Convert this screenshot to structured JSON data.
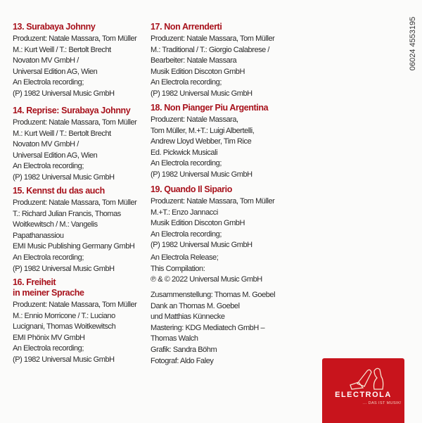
{
  "catalog_number": "06024 4553195",
  "tracks": [
    {
      "title": "13. Surabaya Johnny",
      "lines": [
        "Produzent: Natale Massara, Tom Müller",
        "M.: Kurt Weill / T.: Bertolt Brecht",
        "Novaton MV GmbH /",
        "Universal Edition AG, Wien",
        "An Electrola recording;",
        "(P) 1982 Universal Music GmbH"
      ]
    },
    {
      "title": "14. Reprise: Surabaya Johnny",
      "lines": [
        "Produzent: Natale Massara, Tom Müller",
        "M.: Kurt Weill / T.: Bertolt Brecht",
        "Novaton MV GmbH /",
        "Universal Edition AG, Wien",
        "An Electrola recording;",
        "(P) 1982 Universal Music GmbH"
      ]
    },
    {
      "title": "15. Kennst du das auch",
      "lines": [
        "Produzent: Natale Massara, Tom Müller",
        "T.: Richard Julian Francis, Thomas",
        "Woitkewitsch / M.: Vangelis",
        "Papathanassiou",
        "EMI Music Publishing Germany GmbH",
        "An Electrola recording;",
        "(P) 1982 Universal Music GmbH"
      ]
    },
    {
      "title_lines": [
        "16. Freiheit",
        "in meiner Sprache"
      ],
      "lines": [
        "Produzent: Natale Massara, Tom Müller",
        "M.: Ennio Morricone / T.: Luciano",
        "Lucignani, Thomas Woitkewitsch",
        "EMI Phönix MV GmbH",
        "An Electrola recording;",
        "(P) 1982 Universal Music GmbH"
      ]
    },
    {
      "title": "17. Non Arrenderti",
      "lines": [
        "Produzent: Natale Massara, Tom Müller",
        "M.: Traditional / T.: Giorgio Calabrese /",
        "Bearbeiter: Natale Massara",
        "Musik Edition Discoton GmbH",
        "An Electrola recording;",
        "(P) 1982 Universal Music GmbH"
      ]
    },
    {
      "title": "18. Non Pianger Piu Argentina",
      "lines": [
        "Produzent: Natale Massara,",
        "Tom Müller, M.+T.: Luigi Albertelli,",
        "Andrew Lloyd Webber, Tim Rice",
        "Ed. Pickwick Musicali",
        "An Electrola recording;",
        "(P) 1982 Universal Music GmbH"
      ]
    },
    {
      "title": "19. Quando Il Sipario",
      "lines": [
        "Produzent: Natale Massara, Tom Müller",
        "M.+T.: Enzo Jannacci",
        "Musik Edition Discoton GmbH",
        "An Electrola recording;",
        "(P) 1982 Universal Music GmbH"
      ]
    }
  ],
  "release": [
    "An Electrola Release;",
    "This Compilation:",
    "℗ & © 2022 Universal Music GmbH"
  ],
  "credits": [
    "Zusammenstellung: Thomas M. Goebel",
    "Dank an Thomas M. Goebel",
    "und Matthias Künnecke",
    "Mastering: KDG Mediatech GmbH –",
    "Thomas Walch",
    "Grafik: Sandra Böhm",
    "Fotograf: Aldo Faley"
  ],
  "logo": {
    "brand": "ELECTROLA",
    "slogan": "... DAS IST MUSIK!",
    "color": "#c8141c"
  },
  "colors": {
    "title": "#a8121c",
    "text": "#2a2a2a"
  }
}
